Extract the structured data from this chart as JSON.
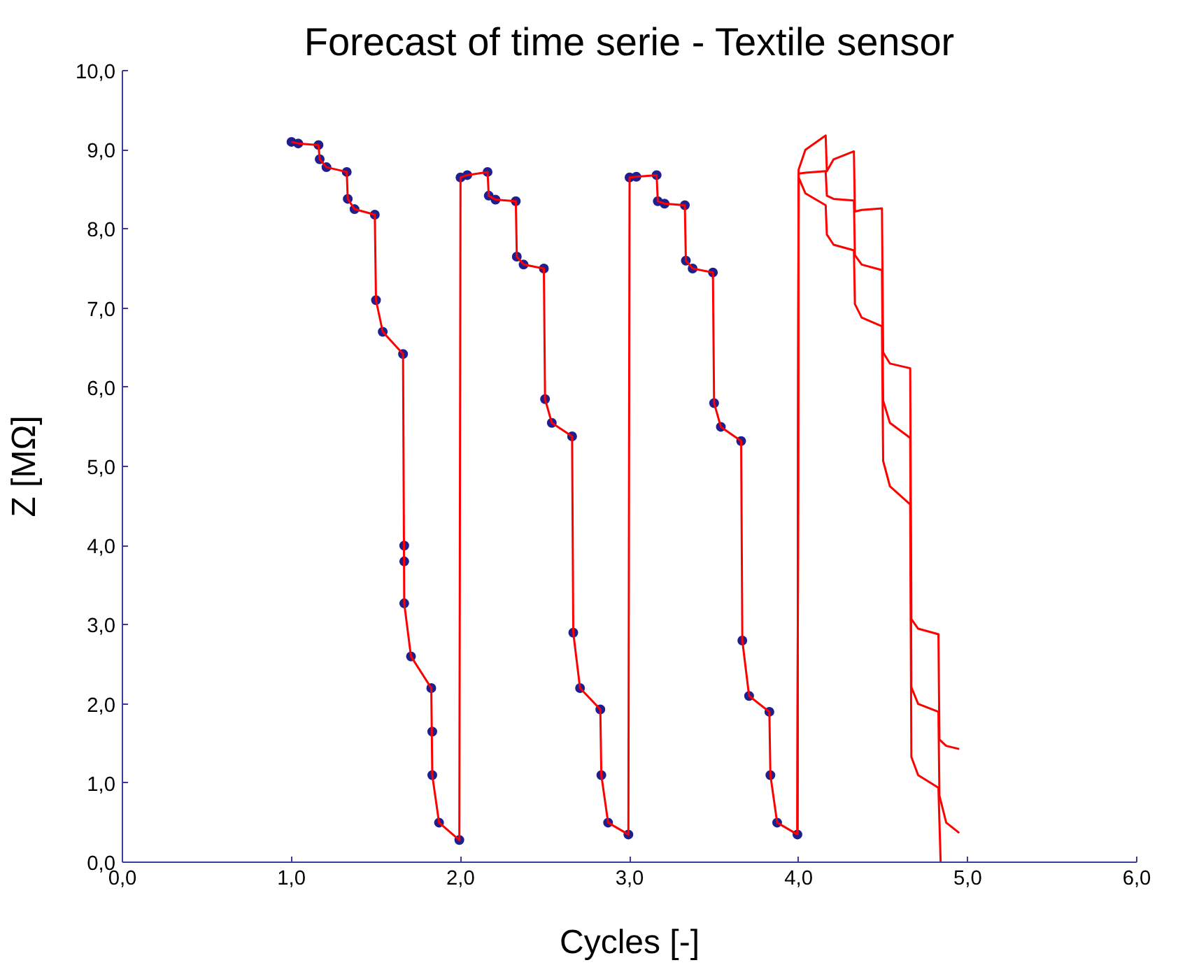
{
  "chart_data": {
    "type": "line",
    "title": "Forecast of time serie - Textile sensor",
    "xlabel": "Cycles [-]",
    "ylabel": "Z [MΩ]",
    "xlim": [
      0,
      6
    ],
    "ylim": [
      0,
      10
    ],
    "xticks": [
      {
        "value": 0,
        "label": "0,0"
      },
      {
        "value": 1,
        "label": "1,0"
      },
      {
        "value": 2,
        "label": "2,0"
      },
      {
        "value": 3,
        "label": "3,0"
      },
      {
        "value": 4,
        "label": "4,0"
      },
      {
        "value": 5,
        "label": "5,0"
      },
      {
        "value": 6,
        "label": "6,0"
      }
    ],
    "yticks": [
      {
        "value": 0,
        "label": "0,0"
      },
      {
        "value": 1,
        "label": "1,0"
      },
      {
        "value": 2,
        "label": "2,0"
      },
      {
        "value": 3,
        "label": "3,0"
      },
      {
        "value": 4,
        "label": "4,0"
      },
      {
        "value": 5,
        "label": "5,0"
      },
      {
        "value": 6,
        "label": "6,0"
      },
      {
        "value": 7,
        "label": "7,0"
      },
      {
        "value": 8,
        "label": "8,0"
      },
      {
        "value": 9,
        "label": "9,0"
      },
      {
        "value": 10,
        "label": "10,0"
      }
    ],
    "grid": false,
    "series": [
      {
        "type": "scatter",
        "marker": "circle",
        "color": "#1f1f8f",
        "x": [
          1,
          1.04,
          1.16,
          1.167,
          1.207,
          1.327,
          1.333,
          1.373,
          1.493,
          1.5,
          1.54,
          1.66,
          1.667,
          1.667,
          1.667,
          1.707,
          1.827,
          1.833,
          1.833,
          1.873,
          1.993,
          2,
          2.04,
          2.16,
          2.167,
          2.207,
          2.327,
          2.333,
          2.373,
          2.493,
          2.5,
          2.54,
          2.66,
          2.667,
          2.707,
          2.827,
          2.833,
          2.873,
          2.993,
          3,
          3.04,
          3.16,
          3.167,
          3.207,
          3.327,
          3.333,
          3.373,
          3.493,
          3.5,
          3.54,
          3.66,
          3.667,
          3.707,
          3.827,
          3.833,
          3.873,
          3.993
        ],
        "values": [
          9.1,
          9.08,
          9.06,
          8.88,
          8.78,
          8.72,
          8.38,
          8.25,
          8.18,
          7.1,
          6.7,
          6.42,
          4.0,
          3.8,
          3.27,
          2.6,
          2.2,
          1.65,
          1.1,
          0.5,
          0.28,
          8.65,
          8.68,
          8.72,
          8.42,
          8.37,
          8.35,
          7.65,
          7.55,
          7.5,
          5.85,
          5.55,
          5.38,
          2.9,
          2.2,
          1.93,
          1.1,
          0.5,
          0.35,
          8.65,
          8.66,
          8.68,
          8.35,
          8.32,
          8.3,
          7.6,
          7.5,
          7.45,
          5.8,
          5.5,
          5.32,
          2.8,
          2.1,
          1.9,
          1.1,
          0.5,
          0.35
        ]
      },
      {
        "color": "#ff0000",
        "x": [
          1,
          1.04,
          1.16,
          1.167,
          1.207,
          1.327,
          1.333,
          1.373,
          1.493,
          1.5,
          1.54,
          1.66,
          1.667,
          1.707,
          1.827,
          1.833,
          1.873,
          1.993,
          2,
          2.04,
          2.16,
          2.167,
          2.207,
          2.327,
          2.333,
          2.373,
          2.493,
          2.5,
          2.54,
          2.66,
          2.667,
          2.707,
          2.827,
          2.833,
          2.873,
          2.993,
          3,
          3.04,
          3.16,
          3.167,
          3.207,
          3.327,
          3.333,
          3.373,
          3.493,
          3.5,
          3.54,
          3.66,
          3.667,
          3.707,
          3.827,
          3.833,
          3.873,
          3.993
        ],
        "values": [
          9.1,
          9.08,
          9.06,
          8.88,
          8.78,
          8.72,
          8.38,
          8.25,
          8.18,
          7.1,
          6.7,
          6.42,
          3.27,
          2.6,
          2.2,
          1.1,
          0.5,
          0.28,
          8.65,
          8.68,
          8.72,
          8.42,
          8.37,
          8.35,
          7.65,
          7.55,
          7.5,
          5.85,
          5.55,
          5.38,
          2.9,
          2.2,
          1.93,
          1.1,
          0.5,
          0.35,
          8.65,
          8.66,
          8.68,
          8.35,
          8.32,
          8.3,
          7.6,
          7.5,
          7.45,
          5.8,
          5.5,
          5.32,
          2.8,
          2.1,
          1.9,
          1.1,
          0.5,
          0.35
        ]
      },
      {
        "type": "line",
        "color": "#ff0000",
        "x": [
          3.993,
          4,
          4.04,
          4.16,
          4.167,
          4.207,
          4.327,
          4.333,
          4.373,
          4.493,
          4.5,
          4.54,
          4.66,
          4.667,
          4.707,
          4.827,
          4.833,
          4.873,
          4.95
        ],
        "values": [
          0.35,
          8.75,
          9.0,
          9.18,
          8.73,
          8.88,
          8.98,
          8.22,
          8.24,
          8.26,
          6.44,
          6.3,
          6.24,
          3.07,
          2.95,
          2.88,
          1.55,
          1.47,
          1.43
        ]
      },
      {
        "type": "line",
        "color": "#ff0000",
        "x": [
          3.993,
          4,
          4.04,
          4.16,
          4.167,
          4.207,
          4.327,
          4.333,
          4.373,
          4.493,
          4.5,
          4.54,
          4.66,
          4.667,
          4.707,
          4.827,
          4.833,
          4.873,
          4.95
        ],
        "values": [
          0.35,
          8.7,
          8.71,
          8.73,
          8.42,
          8.38,
          8.36,
          7.67,
          7.55,
          7.48,
          5.83,
          5.55,
          5.36,
          2.21,
          2.0,
          1.9,
          0.84,
          0.5,
          0.37
        ]
      },
      {
        "type": "line",
        "color": "#ff0000",
        "x": [
          3.993,
          4,
          4.04,
          4.16,
          4.167,
          4.207,
          4.327,
          4.333,
          4.373,
          4.493,
          4.5,
          4.54,
          4.66,
          4.667,
          4.707,
          4.827,
          4.84
        ],
        "values": [
          0.35,
          8.65,
          8.45,
          8.3,
          7.93,
          7.8,
          7.73,
          7.05,
          6.88,
          6.77,
          5.07,
          4.75,
          4.52,
          1.33,
          1.1,
          0.94,
          0
        ]
      }
    ]
  }
}
